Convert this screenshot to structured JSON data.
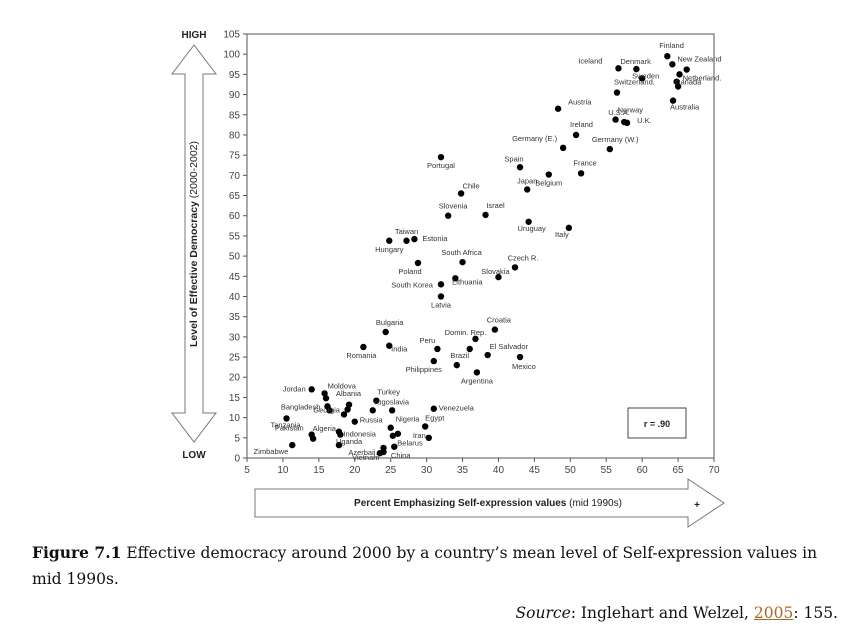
{
  "chart_data": {
    "type": "scatter",
    "title": "",
    "xlabel": "Percent Emphasizing Self-expression values",
    "xlabel_suffix": "(mid 1990s)",
    "ylabel": "Level of Effective Democracy",
    "ylabel_suffix": "(2000-2002)",
    "y_high_label": "HIGH",
    "y_low_label": "LOW",
    "x_end_mark": "+",
    "xlim": [
      5,
      70
    ],
    "ylim": [
      0,
      105
    ],
    "xticks": [
      5,
      10,
      15,
      20,
      25,
      30,
      35,
      40,
      45,
      50,
      55,
      60,
      65,
      70
    ],
    "yticks": [
      0,
      5,
      10,
      15,
      20,
      25,
      30,
      35,
      40,
      45,
      50,
      55,
      60,
      65,
      70,
      75,
      80,
      85,
      90,
      95,
      100,
      105
    ],
    "grid": false,
    "annotation": "r = .90",
    "points": [
      {
        "x": 63.5,
        "y": 99.5,
        "label": "Finland"
      },
      {
        "x": 64.2,
        "y": 97.5,
        "label": "New Zealand"
      },
      {
        "x": 59.2,
        "y": 96.3,
        "label": "Denmark"
      },
      {
        "x": 66.2,
        "y": 96.2,
        "label": ""
      },
      {
        "x": 60.0,
        "y": 94.0,
        "label": "Sweden"
      },
      {
        "x": 65.2,
        "y": 95.0,
        "label": ""
      },
      {
        "x": 56.7,
        "y": 96.5,
        "label": "Iceland"
      },
      {
        "x": 64.8,
        "y": 93.2,
        "label": "Netherland."
      },
      {
        "x": 56.5,
        "y": 90.5,
        "label": "Switzerland."
      },
      {
        "x": 65.0,
        "y": 92.0,
        "label": "Canada"
      },
      {
        "x": 64.3,
        "y": 88.5,
        "label": "Australia"
      },
      {
        "x": 48.3,
        "y": 86.5,
        "label": "Austria"
      },
      {
        "x": 56.3,
        "y": 83.8,
        "label": "Norway"
      },
      {
        "x": 57.5,
        "y": 83.2,
        "label": "U.S.A."
      },
      {
        "x": 57.9,
        "y": 83.0,
        "label": "U.K."
      },
      {
        "x": 50.8,
        "y": 80.0,
        "label": "Ireland"
      },
      {
        "x": 49.0,
        "y": 76.8,
        "label": "Germany (E.)"
      },
      {
        "x": 55.5,
        "y": 76.5,
        "label": "Germany (W.)"
      },
      {
        "x": 32.0,
        "y": 74.5,
        "label": "Portugal"
      },
      {
        "x": 43.0,
        "y": 72.0,
        "label": "Spain"
      },
      {
        "x": 51.5,
        "y": 70.5,
        "label": "France"
      },
      {
        "x": 47.0,
        "y": 70.2,
        "label": "Belgium"
      },
      {
        "x": 44.0,
        "y": 66.5,
        "label": "Japan"
      },
      {
        "x": 34.8,
        "y": 65.5,
        "label": "Chile"
      },
      {
        "x": 38.2,
        "y": 60.2,
        "label": "Israel"
      },
      {
        "x": 33.0,
        "y": 60.0,
        "label": "Slovenia"
      },
      {
        "x": 44.2,
        "y": 58.5,
        "label": "Uruguay"
      },
      {
        "x": 49.8,
        "y": 57.0,
        "label": "Italy"
      },
      {
        "x": 24.8,
        "y": 53.8,
        "label": "Hungary"
      },
      {
        "x": 27.2,
        "y": 53.8,
        "label": "Taiwan"
      },
      {
        "x": 28.3,
        "y": 54.2,
        "label": "Estonia"
      },
      {
        "x": 35.0,
        "y": 48.5,
        "label": "South Africa"
      },
      {
        "x": 28.8,
        "y": 48.3,
        "label": "Poland"
      },
      {
        "x": 42.3,
        "y": 47.2,
        "label": "Czech R."
      },
      {
        "x": 40.0,
        "y": 44.8,
        "label": "Slovakia"
      },
      {
        "x": 34.0,
        "y": 44.5,
        "label": "Lithuania"
      },
      {
        "x": 32.0,
        "y": 43.0,
        "label": "South Korea"
      },
      {
        "x": 32.0,
        "y": 40.0,
        "label": "Latvia"
      },
      {
        "x": 24.3,
        "y": 31.2,
        "label": "Bulgaria"
      },
      {
        "x": 39.5,
        "y": 31.8,
        "label": "Croatia"
      },
      {
        "x": 36.8,
        "y": 29.5,
        "label": "Domin. Rep."
      },
      {
        "x": 21.2,
        "y": 27.5,
        "label": "Romania"
      },
      {
        "x": 24.8,
        "y": 27.8,
        "label": "India"
      },
      {
        "x": 31.5,
        "y": 27.0,
        "label": "Peru"
      },
      {
        "x": 36.0,
        "y": 27.0,
        "label": "Brazil"
      },
      {
        "x": 38.5,
        "y": 25.5,
        "label": "El Salvador"
      },
      {
        "x": 43.0,
        "y": 25.0,
        "label": "Mexico"
      },
      {
        "x": 31.0,
        "y": 24.0,
        "label": "Philippines"
      },
      {
        "x": 34.2,
        "y": 23.0,
        "label": ""
      },
      {
        "x": 37.0,
        "y": 21.2,
        "label": "Argentina"
      },
      {
        "x": 14.0,
        "y": 17.0,
        "label": "Jordan"
      },
      {
        "x": 15.8,
        "y": 16.0,
        "label": "Moldova"
      },
      {
        "x": 16.0,
        "y": 14.8,
        "label": "Albania"
      },
      {
        "x": 23.0,
        "y": 14.2,
        "label": "Turkey"
      },
      {
        "x": 19.2,
        "y": 13.2,
        "label": ""
      },
      {
        "x": 16.2,
        "y": 12.8,
        "label": "Bangladesh"
      },
      {
        "x": 16.5,
        "y": 11.8,
        "label": ""
      },
      {
        "x": 19.0,
        "y": 12.0,
        "label": ""
      },
      {
        "x": 22.5,
        "y": 11.8,
        "label": "Yugoslavia"
      },
      {
        "x": 25.2,
        "y": 11.8,
        "label": ""
      },
      {
        "x": 31.0,
        "y": 12.2,
        "label": "Venezuela"
      },
      {
        "x": 18.5,
        "y": 10.8,
        "label": "Georgia"
      },
      {
        "x": 10.5,
        "y": 9.8,
        "label": "Tanzania"
      },
      {
        "x": 20.0,
        "y": 9.0,
        "label": "Russia"
      },
      {
        "x": 25.0,
        "y": 7.5,
        "label": "Nigeria"
      },
      {
        "x": 29.8,
        "y": 7.8,
        "label": "Egypt"
      },
      {
        "x": 17.8,
        "y": 6.5,
        "label": "Algeria"
      },
      {
        "x": 18.0,
        "y": 5.8,
        "label": "Indonesia"
      },
      {
        "x": 26.0,
        "y": 6.0,
        "label": ""
      },
      {
        "x": 14.0,
        "y": 5.8,
        "label": "Pakistan"
      },
      {
        "x": 14.2,
        "y": 4.8,
        "label": ""
      },
      {
        "x": 25.3,
        "y": 5.5,
        "label": "Iran"
      },
      {
        "x": 30.3,
        "y": 5.0,
        "label": ""
      },
      {
        "x": 11.3,
        "y": 3.2,
        "label": "Zimbabwe"
      },
      {
        "x": 17.8,
        "y": 3.2,
        "label": "Uganda"
      },
      {
        "x": 24.0,
        "y": 2.5,
        "label": "Azerbaij."
      },
      {
        "x": 25.5,
        "y": 2.8,
        "label": "Belarus"
      },
      {
        "x": 24.0,
        "y": 1.5,
        "label": "Vietnam"
      },
      {
        "x": 23.5,
        "y": 1.2,
        "label": "China"
      }
    ]
  },
  "caption": {
    "figure_label": "Figure 7.1",
    "text": " Effective democracy around 2000 by a country’s mean level of Self-expression values in mid 1990s."
  },
  "source": {
    "label": "Source",
    "prefix": ": Inglehart and Welzel, ",
    "year": "2005",
    "suffix": ": 155."
  }
}
